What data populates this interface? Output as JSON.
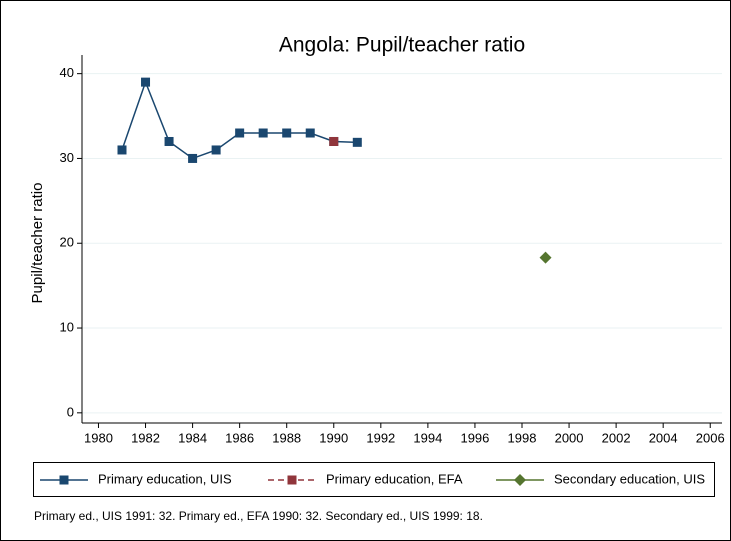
{
  "chart_data": {
    "type": "line",
    "title": "Angola: Pupil/teacher ratio",
    "y_label": "Pupil/teacher ratio",
    "note": "Primary ed., UIS 1991: 32. Primary ed., EFA 1990: 32. Secondary ed., UIS 1999: 18.",
    "series": [
      {
        "name": "Primary education, UIS",
        "color": "#1a476f",
        "marker": "square",
        "line_style": "solid",
        "x": [
          1981,
          1982,
          1983,
          1984,
          1985,
          1986,
          1987,
          1988,
          1989,
          1990,
          1991
        ],
        "values": [
          31,
          39,
          32,
          30,
          31,
          33,
          33,
          33,
          33,
          32,
          31.9
        ]
      },
      {
        "name": "Primary education, EFA",
        "color": "#90353b",
        "marker": "square",
        "line_style": "dashed",
        "x": [
          1990
        ],
        "values": [
          32
        ]
      },
      {
        "name": "Secondary education, UIS",
        "color": "#55752f",
        "marker": "diamond",
        "line_style": "solid",
        "x": [
          1999
        ],
        "values": [
          18.3
        ]
      }
    ],
    "xlim": [
      1979.3,
      2006.5
    ],
    "xticks": [
      1980,
      1982,
      1984,
      1986,
      1988,
      1990,
      1992,
      1994,
      1996,
      1998,
      2000,
      2002,
      2004,
      2006
    ],
    "ylim": [
      -1.2,
      42.2
    ],
    "yticks": [
      0,
      10,
      20,
      30,
      40
    ],
    "grid": true,
    "legend": "bottom"
  }
}
